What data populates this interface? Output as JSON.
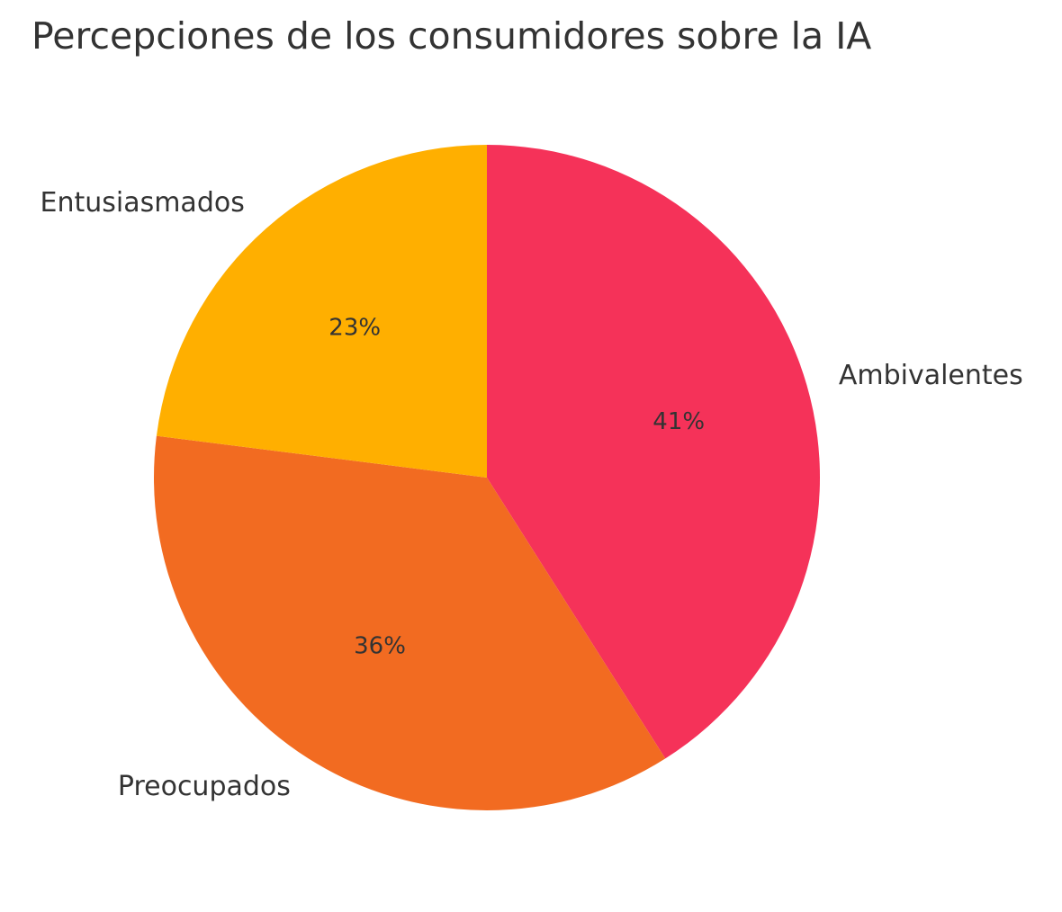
{
  "chart_data": {
    "type": "pie",
    "title": "Percepciones de los consumidores sobre la IA",
    "categories": [
      "Ambivalentes",
      "Preocupados",
      "Entusiasmados"
    ],
    "values": [
      41,
      36,
      23
    ],
    "value_labels": [
      "41%",
      "36%",
      "23%"
    ],
    "colors": [
      "#F53259",
      "#F26B21",
      "#FFAF00"
    ],
    "start_angle_deg": 90,
    "direction": "clockwise",
    "legend": "none"
  }
}
